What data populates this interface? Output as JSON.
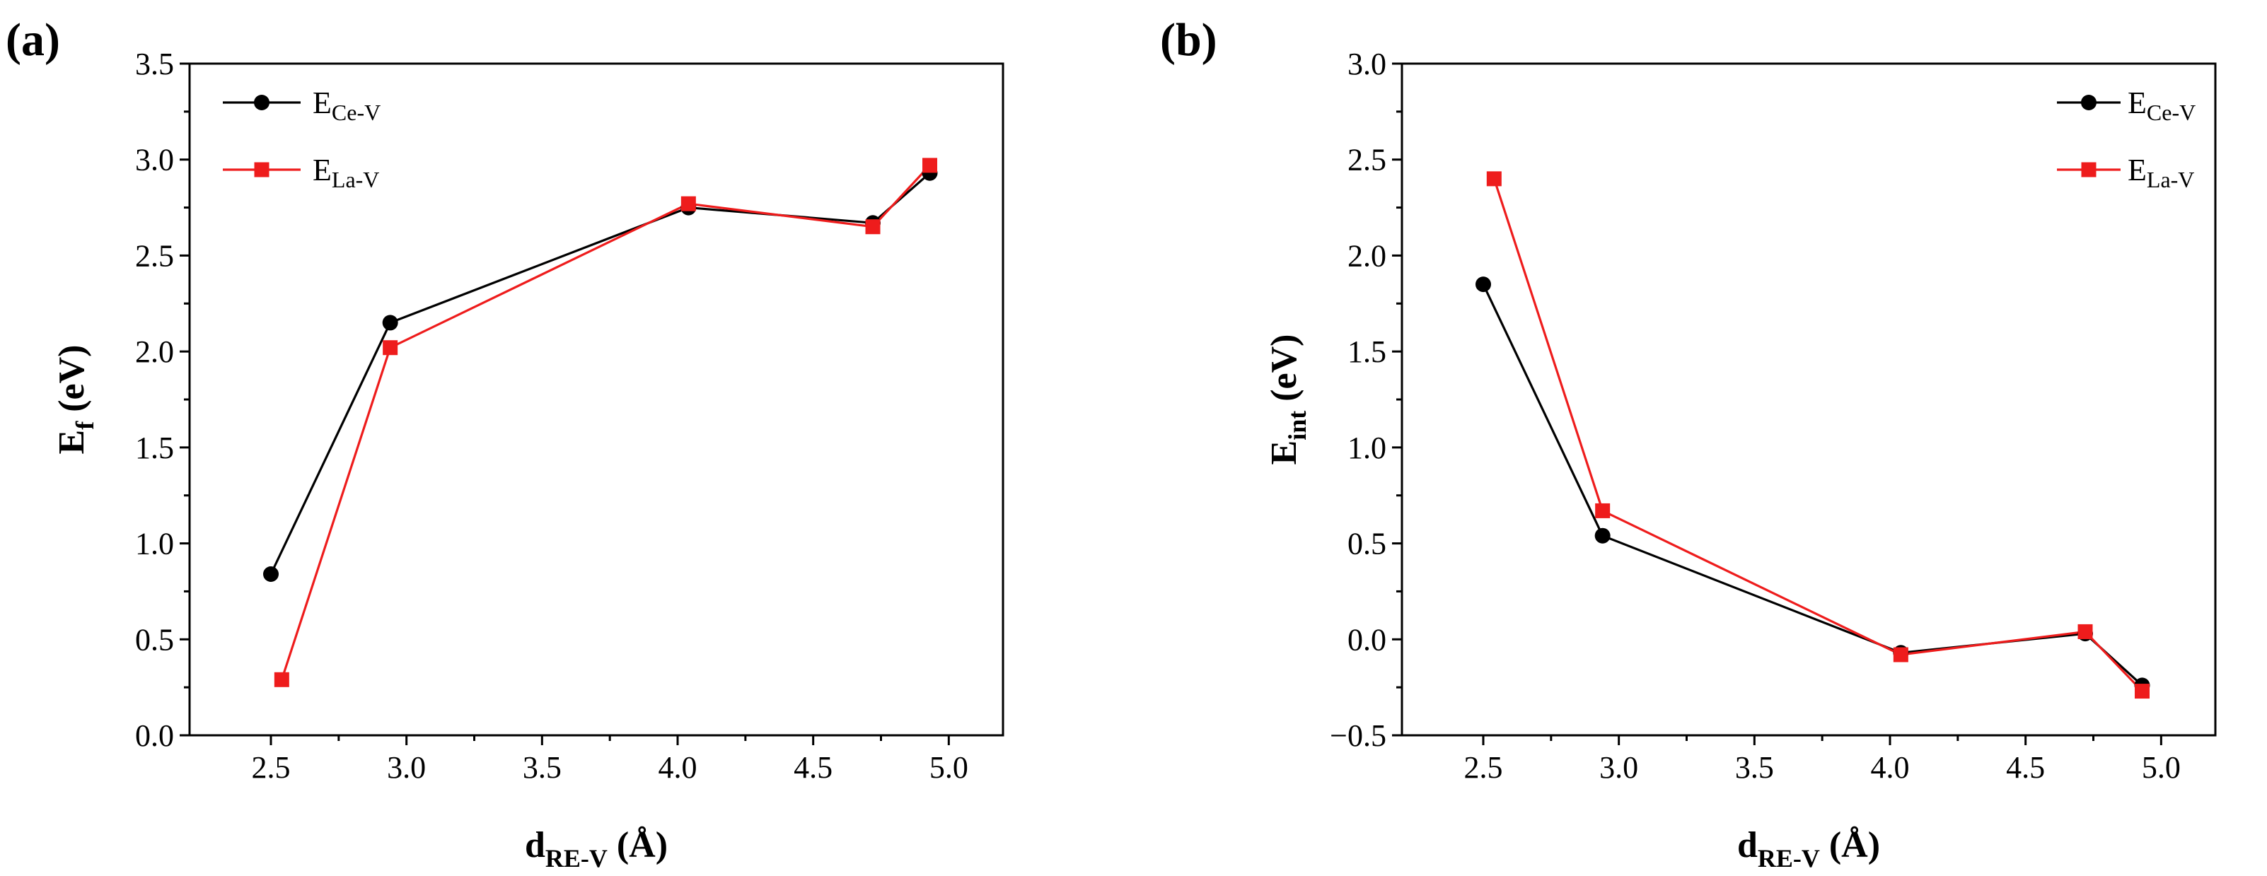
{
  "colors": {
    "ce": "#000000",
    "la": "#ee1c1c",
    "axis": "#000000"
  },
  "chart_data": [
    {
      "panel": "(a)",
      "type": "line",
      "xlabel": {
        "main": "d",
        "sub": "RE-V",
        "suffix": " (Å)"
      },
      "ylabel": {
        "main": "E",
        "sub": "f",
        "suffix": " (eV)"
      },
      "xlim": [
        2.2,
        5.2
      ],
      "ylim": [
        0.0,
        3.5
      ],
      "xticks": [
        2.5,
        3.0,
        3.5,
        4.0,
        4.5,
        5.0
      ],
      "xtick_labels": [
        "2.5",
        "3.0",
        "3.5",
        "4.0",
        "4.5",
        "5.0"
      ],
      "yticks": [
        0.0,
        0.5,
        1.0,
        1.5,
        2.0,
        2.5,
        3.0,
        3.5
      ],
      "ytick_labels": [
        "0.0",
        "0.5",
        "1.0",
        "1.5",
        "2.0",
        "2.5",
        "3.0",
        "3.5"
      ],
      "legend_position": "top-left",
      "series": [
        {
          "name": "E",
          "sub": "Ce-V",
          "marker": "circle",
          "color": "#000000",
          "x": [
            2.5,
            2.94,
            4.04,
            4.72,
            4.93
          ],
          "y": [
            0.84,
            2.15,
            2.75,
            2.67,
            2.93
          ]
        },
        {
          "name": "E",
          "sub": "La-V",
          "marker": "square",
          "color": "#ee1c1c",
          "x": [
            2.54,
            2.94,
            4.04,
            4.72,
            4.93
          ],
          "y": [
            0.29,
            2.02,
            2.77,
            2.65,
            2.97
          ]
        }
      ]
    },
    {
      "panel": "(b)",
      "type": "line",
      "xlabel": {
        "main": "d",
        "sub": "RE-V",
        "suffix": " (Å)"
      },
      "ylabel": {
        "main": "E",
        "sub": "int",
        "suffix": " (eV)"
      },
      "xlim": [
        2.2,
        5.2
      ],
      "ylim": [
        -0.5,
        3.0
      ],
      "xticks": [
        2.5,
        3.0,
        3.5,
        4.0,
        4.5,
        5.0
      ],
      "xtick_labels": [
        "2.5",
        "3.0",
        "3.5",
        "4.0",
        "4.5",
        "5.0"
      ],
      "yticks": [
        -0.5,
        0.0,
        0.5,
        1.0,
        1.5,
        2.0,
        2.5,
        3.0
      ],
      "ytick_labels": [
        "−0.5",
        "0.0",
        "0.5",
        "1.0",
        "1.5",
        "2.0",
        "2.5",
        "3.0"
      ],
      "legend_position": "top-right",
      "series": [
        {
          "name": "E",
          "sub": "Ce-V",
          "marker": "circle",
          "color": "#000000",
          "x": [
            2.5,
            2.94,
            4.04,
            4.72,
            4.93
          ],
          "y": [
            1.85,
            0.54,
            -0.07,
            0.03,
            -0.24
          ]
        },
        {
          "name": "E",
          "sub": "La-V",
          "marker": "square",
          "color": "#ee1c1c",
          "x": [
            2.54,
            2.94,
            4.04,
            4.72,
            4.93
          ],
          "y": [
            2.4,
            0.67,
            -0.08,
            0.04,
            -0.27
          ]
        }
      ]
    }
  ]
}
